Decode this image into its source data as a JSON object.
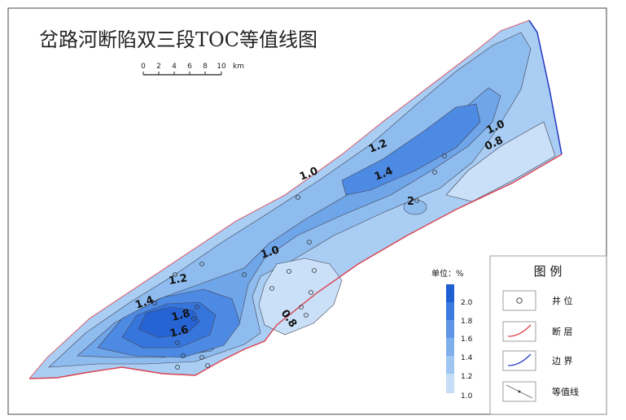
{
  "map": {
    "title": "岔路河断陷双三段TOC等值线图",
    "scale_bar": {
      "ticks": [
        "0",
        "2",
        "4",
        "6",
        "8",
        "10"
      ],
      "unit": "km"
    }
  },
  "contour_labels": [
    "1.0",
    "1.2",
    "1.4",
    "1.6",
    "1.8",
    "2",
    "0.8",
    "1.0",
    "0.8",
    "1.4",
    "1.2",
    "1.0"
  ],
  "colorbar": {
    "title": "单位：%",
    "labels": [
      "2.0",
      "1.8",
      "1.6",
      "1.4",
      "1.2",
      "1.0"
    ],
    "colors": [
      "#1f5fd1",
      "#3b7be0",
      "#5f97e6",
      "#7fb0ec",
      "#9fc6f1",
      "#c5ddf7"
    ]
  },
  "legend": {
    "title": "图 例",
    "items": [
      {
        "icon": "well-circle-icon",
        "label": "井 位"
      },
      {
        "icon": "fault-line-icon",
        "label": "断 层",
        "color": "#d9424e"
      },
      {
        "icon": "boundary-line-icon",
        "label": "边 界",
        "color": "#2c3fc4"
      },
      {
        "icon": "contour-line-icon",
        "label": "等值线"
      }
    ]
  }
}
